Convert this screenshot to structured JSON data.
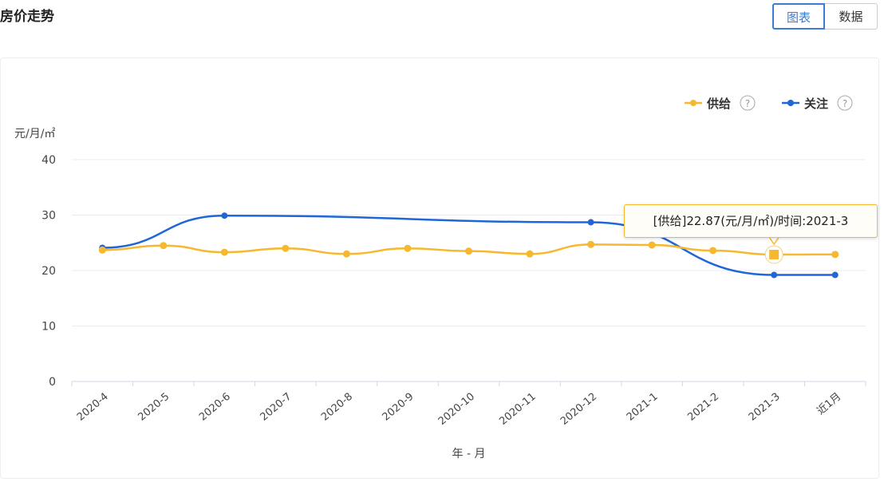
{
  "header": {
    "title": "房价走势",
    "tabs": [
      {
        "label": "图表",
        "active": true
      },
      {
        "label": "数据",
        "active": false
      }
    ]
  },
  "tooltip": {
    "text": "[供给]22.87(元/月/㎡)/时间:2021-3"
  },
  "chart_data": {
    "type": "line",
    "ylabel": "元/月/㎡",
    "xlabel": "年 - 月",
    "ylim": [
      0,
      40
    ],
    "yticks": [
      0,
      10,
      20,
      30,
      40
    ],
    "grid": true,
    "legend_position": "top-right",
    "categories": [
      "2020-4",
      "2020-5",
      "2020-6",
      "2020-7",
      "2020-8",
      "2020-9",
      "2020-10",
      "2020-11",
      "2020-12",
      "2021-1",
      "2021-2",
      "2021-3",
      "近1月"
    ],
    "series": [
      {
        "name": "供给",
        "color": "#f5b82e",
        "help_icon": "question-circle-icon",
        "values": [
          23.7,
          24.5,
          23.3,
          24.0,
          23.0,
          24.0,
          23.5,
          23.0,
          24.7,
          24.6,
          23.6,
          22.87,
          22.9
        ]
      },
      {
        "name": "关注",
        "color": "#1f66d6",
        "help_icon": "question-circle-icon",
        "values": [
          24.1,
          null,
          29.9,
          null,
          null,
          null,
          null,
          null,
          28.7,
          null,
          null,
          19.2,
          19.2
        ]
      }
    ]
  }
}
